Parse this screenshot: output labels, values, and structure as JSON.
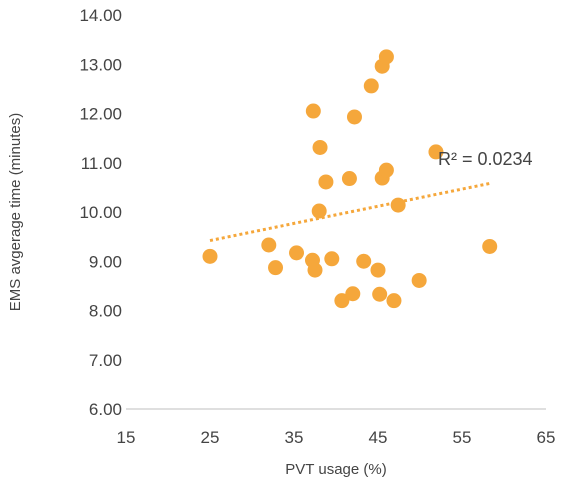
{
  "chart_data": {
    "type": "scatter",
    "xlabel": "PVT usage (%)",
    "ylabel": "EMS avgerage time (minutes)",
    "xlim": [
      15,
      65
    ],
    "ylim": [
      6,
      14
    ],
    "x_ticks": [
      "15",
      "25",
      "35",
      "45",
      "55",
      "65"
    ],
    "y_ticks": [
      "6.00",
      "7.00",
      "8.00",
      "9.00",
      "10.00",
      "11.00",
      "12.00",
      "13.00",
      "14.00"
    ],
    "grid": false,
    "marker_color": "#F5A73B",
    "trendline": {
      "type": "linear",
      "style": "dotted",
      "color": "#F5A73B",
      "from": [
        25,
        9.42
      ],
      "to": [
        58.3,
        10.58
      ],
      "r_squared_label": "R² = 0.0234"
    },
    "points": [
      {
        "x": 25.0,
        "y": 9.1
      },
      {
        "x": 32.0,
        "y": 9.33
      },
      {
        "x": 32.8,
        "y": 8.87
      },
      {
        "x": 35.3,
        "y": 9.17
      },
      {
        "x": 37.2,
        "y": 9.02
      },
      {
        "x": 37.5,
        "y": 8.82
      },
      {
        "x": 37.3,
        "y": 12.05
      },
      {
        "x": 38.1,
        "y": 11.31
      },
      {
        "x": 38.0,
        "y": 10.02
      },
      {
        "x": 38.8,
        "y": 10.61
      },
      {
        "x": 39.5,
        "y": 9.05
      },
      {
        "x": 40.7,
        "y": 8.2
      },
      {
        "x": 41.6,
        "y": 10.68
      },
      {
        "x": 42.0,
        "y": 8.34
      },
      {
        "x": 42.2,
        "y": 11.93
      },
      {
        "x": 43.3,
        "y": 9.0
      },
      {
        "x": 44.2,
        "y": 12.56
      },
      {
        "x": 45.0,
        "y": 8.82
      },
      {
        "x": 45.2,
        "y": 8.33
      },
      {
        "x": 45.5,
        "y": 12.96
      },
      {
        "x": 45.5,
        "y": 10.69
      },
      {
        "x": 46.0,
        "y": 13.15
      },
      {
        "x": 46.0,
        "y": 10.85
      },
      {
        "x": 46.9,
        "y": 8.2
      },
      {
        "x": 47.4,
        "y": 10.14
      },
      {
        "x": 49.9,
        "y": 8.61
      },
      {
        "x": 51.9,
        "y": 11.22
      },
      {
        "x": 58.3,
        "y": 9.3
      }
    ]
  }
}
